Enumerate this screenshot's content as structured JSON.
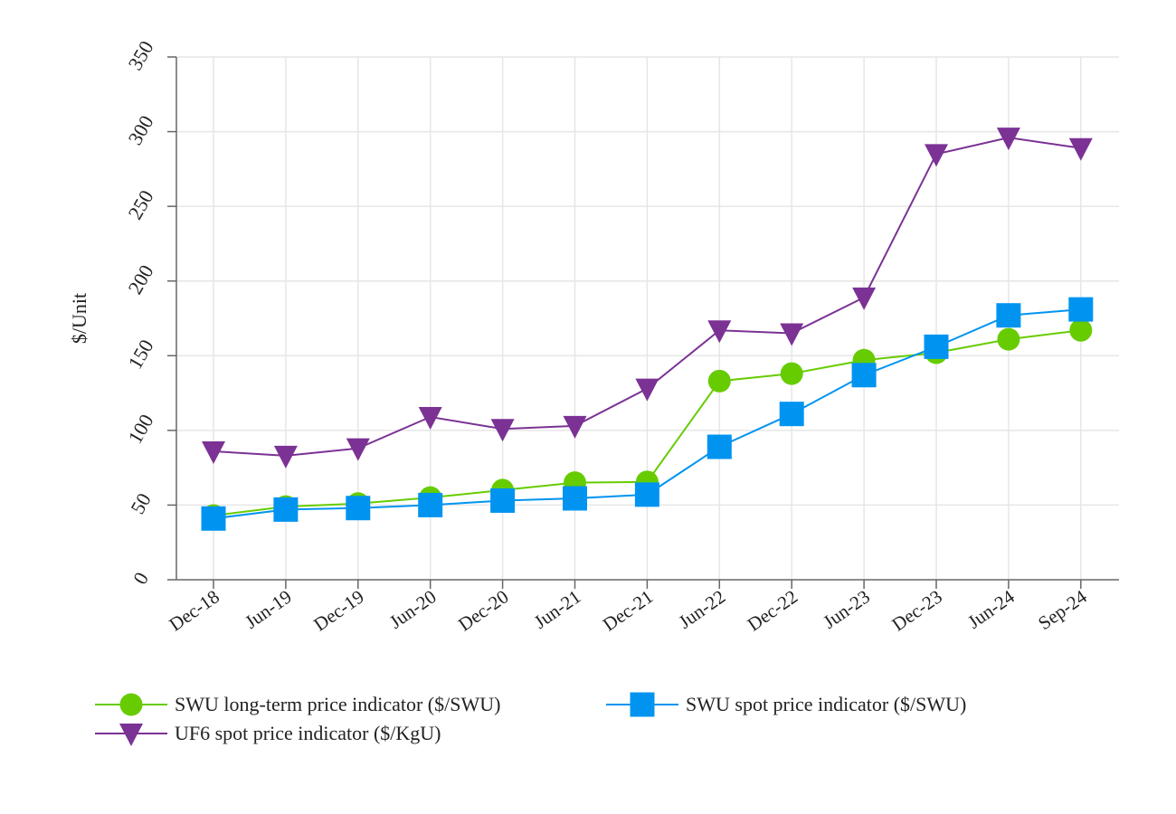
{
  "chart_data": {
    "type": "line",
    "title": "",
    "xlabel": "",
    "ylabel": "$/Unit",
    "ylim": [
      0,
      350
    ],
    "yticks": [
      0,
      50,
      100,
      150,
      200,
      250,
      300,
      350
    ],
    "grid": true,
    "legend_position": "bottom",
    "categories": [
      "Dec-18",
      "Jun-19",
      "Dec-19",
      "Jun-20",
      "Dec-20",
      "Jun-21",
      "Dec-21",
      "Jun-22",
      "Dec-22",
      "Jun-23",
      "Dec-23",
      "Jun-24",
      "Sep-24"
    ],
    "series": [
      {
        "name": "SWU long-term price indicator ($/SWU)",
        "color": "#66cc00",
        "marker": "circle",
        "values": [
          43,
          49,
          51,
          55,
          60,
          65,
          65.5,
          133,
          138,
          147,
          152,
          161,
          167
        ]
      },
      {
        "name": "SWU spot price indicator ($/SWU)",
        "color": "#0094f0",
        "marker": "square",
        "values": [
          41,
          47,
          48,
          50,
          53,
          54.5,
          57,
          89,
          111,
          137,
          156,
          177,
          181
        ]
      },
      {
        "name": "UF6 spot price indicator ($/KgU)",
        "color": "#7b3294",
        "marker": "triangle-down",
        "values": [
          86,
          83,
          88,
          109,
          101,
          103,
          128,
          167,
          165,
          189,
          285,
          296,
          289
        ]
      }
    ]
  }
}
